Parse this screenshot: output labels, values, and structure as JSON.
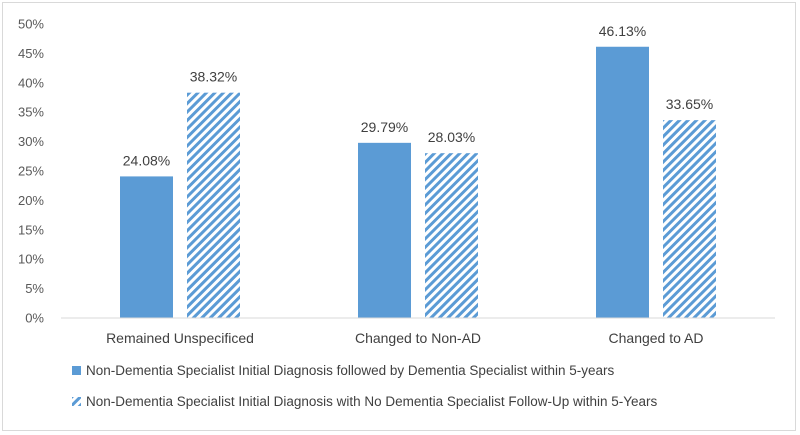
{
  "chart_data": {
    "type": "bar",
    "title": "",
    "xlabel": "",
    "ylabel": "",
    "categories": [
      "Remained Unspecificed",
      "Changed to Non-AD",
      "Changed to AD"
    ],
    "ylim": [
      0,
      50
    ],
    "yticks": [
      0,
      5,
      10,
      15,
      20,
      25,
      30,
      35,
      40,
      45,
      50
    ],
    "ytick_labels": [
      "0%",
      "5%",
      "10%",
      "15%",
      "20%",
      "25%",
      "30%",
      "35%",
      "40%",
      "45%",
      "50%"
    ],
    "grid": false,
    "legend_position": "bottom",
    "series": [
      {
        "name": "Non-Dementia Specialist Initial Diagnosis followed by Dementia Specialist within 5-years",
        "values": [
          24.08,
          29.79,
          46.13
        ],
        "labels": [
          "24.08%",
          "29.79%",
          "46.13%"
        ],
        "color": "#5b9bd5",
        "pattern": "solid"
      },
      {
        "name": "Non-Dementia Specialist Initial Diagnosis with No Dementia Specialist Follow-Up within 5-Years",
        "values": [
          38.32,
          28.03,
          33.65
        ],
        "labels": [
          "38.32%",
          "28.03%",
          "33.65%"
        ],
        "color": "#5b9bd5",
        "pattern": "diagonal-hatch"
      }
    ]
  }
}
